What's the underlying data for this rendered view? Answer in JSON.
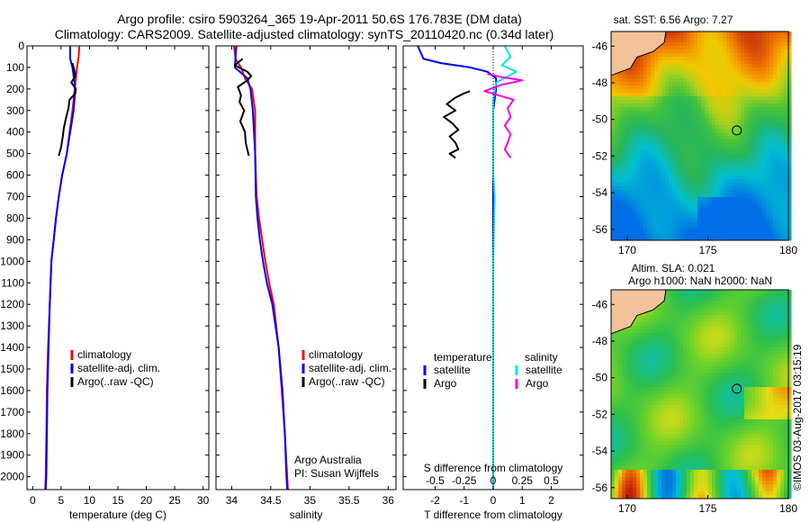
{
  "header": {
    "line1": "Argo profile: csiro 5903264_365 19-Apr-2011 50.6S 176.783E (DM data)",
    "line2": "Climatology: CARS2009. Satellite-adjusted climatology: synTS_20110420.nc (0.34d later)"
  },
  "colors": {
    "climatology": "#ff0000",
    "satellite": "#0000ff",
    "argo": "#000000",
    "sat_salinity": "#00e5ee",
    "argo_salinity": "#ee00ee",
    "land": "#f2c39a"
  },
  "chart_data": [
    {
      "type": "line",
      "id": "temperature",
      "xlabel": "temperature (deg C)",
      "xlim": [
        -1,
        31
      ],
      "ylim": [
        2060,
        0
      ],
      "xticks": [
        0,
        5,
        10,
        15,
        20,
        25,
        30
      ],
      "yticks": [
        0,
        100,
        200,
        300,
        400,
        500,
        600,
        700,
        800,
        900,
        1000,
        1100,
        1200,
        1300,
        1400,
        1500,
        1600,
        1700,
        1800,
        1900,
        2000
      ],
      "legend": [
        "climatology",
        "satellite-adj. clim.",
        "Argo(..raw -QC)"
      ],
      "series": [
        {
          "name": "climatology",
          "color": "#ff0000",
          "x": [
            8.2,
            8.1,
            7.8,
            7.4,
            7.0,
            6.5,
            6.0,
            5.2,
            4.6,
            4.1,
            3.7,
            3.3,
            3.0,
            2.7,
            2.5,
            2.4,
            2.3,
            2.2
          ],
          "y": [
            0,
            50,
            100,
            200,
            300,
            400,
            500,
            600,
            700,
            800,
            900,
            1000,
            1200,
            1400,
            1600,
            1800,
            2000,
            2060
          ]
        },
        {
          "name": "satellite-adj. clim.",
          "color": "#0000ff",
          "x": [
            6.6,
            6.6,
            7.0,
            7.5,
            7.2,
            6.6,
            6.0,
            5.2,
            4.6,
            4.1,
            3.7,
            3.3,
            3.0,
            2.8,
            2.6,
            2.5,
            2.4,
            2.3
          ],
          "y": [
            0,
            60,
            100,
            200,
            300,
            400,
            500,
            600,
            700,
            800,
            900,
            1000,
            1200,
            1400,
            1600,
            1800,
            2000,
            2060
          ]
        },
        {
          "name": "Argo(..raw -QC)",
          "color": "#000000",
          "x": [
            7.0,
            7.3,
            7.5,
            6.8,
            7.6,
            7.5,
            6.5,
            6.3,
            5.9,
            5.5,
            5.3,
            5.0,
            4.6
          ],
          "y": [
            80,
            110,
            140,
            170,
            200,
            220,
            250,
            290,
            330,
            380,
            420,
            470,
            510
          ]
        }
      ]
    },
    {
      "type": "line",
      "id": "salinity",
      "xlabel": "salinity",
      "xlim": [
        33.8,
        36.1
      ],
      "ylim": [
        2060,
        0
      ],
      "xticks": [
        34,
        34.5,
        35,
        35.5,
        36
      ],
      "legend": [
        "climatology",
        "satellite-adj. clim.",
        "Argo(..raw -QC)"
      ],
      "annotation": [
        "Argo Australia",
        "PI: Susan Wijffels"
      ],
      "series": [
        {
          "name": "climatology",
          "color": "#ff0000",
          "x": [
            34.03,
            34.05,
            34.12,
            34.17,
            34.26,
            34.3,
            34.3,
            34.32,
            34.35,
            34.39,
            34.43,
            34.48,
            34.54,
            34.6,
            34.64,
            34.68,
            34.71,
            34.72
          ],
          "y": [
            0,
            60,
            100,
            150,
            200,
            300,
            500,
            700,
            800,
            900,
            1000,
            1100,
            1200,
            1400,
            1600,
            1800,
            2000,
            2060
          ]
        },
        {
          "name": "satellite-adj. clim.",
          "color": "#0000ff",
          "x": [
            34.06,
            34.04,
            34.2,
            34.24,
            34.27,
            34.3,
            34.31,
            34.33,
            34.36,
            34.4,
            34.45,
            34.52,
            34.6,
            34.65,
            34.68,
            34.7,
            34.71
          ],
          "y": [
            0,
            100,
            150,
            200,
            300,
            500,
            700,
            800,
            900,
            1000,
            1100,
            1200,
            1400,
            1600,
            1800,
            2000,
            2060
          ]
        },
        {
          "name": "Argo(..raw -QC)",
          "color": "#000000",
          "x": [
            34.14,
            34.04,
            34.2,
            34.25,
            34.2,
            34.08,
            34.12,
            34.1,
            34.16,
            34.11,
            34.17,
            34.18,
            34.22
          ],
          "y": [
            60,
            90,
            120,
            140,
            160,
            190,
            230,
            260,
            300,
            350,
            400,
            450,
            510
          ]
        }
      ]
    },
    {
      "type": "line",
      "id": "differences",
      "xlabel": "T difference from climatology",
      "xlabel2": "S difference from climatology",
      "xlim": [
        -3.1,
        3.1
      ],
      "ylim": [
        2060,
        0
      ],
      "xticks_T": [
        -2,
        -1,
        0,
        1,
        2
      ],
      "xticks_S": [
        "-0.5",
        "-0.25",
        "0",
        "0.25",
        "0.5"
      ],
      "xticks_S_pos": [
        -2,
        -1,
        0,
        1,
        2
      ],
      "legend_t": [
        "temperature",
        "satellite",
        "Argo"
      ],
      "legend_s": [
        "salinity",
        "satellite",
        "Argo"
      ],
      "series": [
        {
          "name": "satellite",
          "color": "#0000ff",
          "x": [
            -2.6,
            -2.4,
            -1.8,
            -0.8,
            -0.2,
            0.1,
            0.1,
            0.0,
            0.0,
            0.0,
            0.0,
            0.0
          ],
          "y": [
            0,
            60,
            80,
            100,
            120,
            150,
            200,
            300,
            600,
            1000,
            1500,
            2060
          ]
        },
        {
          "name": "Argo",
          "color": "#000000",
          "x": [
            -0.8,
            -1.0,
            -1.3,
            -1.6,
            -1.3,
            -1.7,
            -1.4,
            -1.2,
            -1.5,
            -1.3,
            -1.2,
            -1.5,
            -1.3
          ],
          "y": [
            210,
            220,
            240,
            270,
            300,
            330,
            360,
            390,
            420,
            450,
            480,
            500,
            520
          ]
        },
        {
          "name": "salinity satellite",
          "color": "#00e5ee",
          "x": [
            0.4,
            0.6,
            0.3,
            0.8,
            0.1,
            0.0,
            0.0,
            0.0,
            0.05,
            0.0,
            0.0
          ],
          "y": [
            0,
            50,
            90,
            120,
            170,
            250,
            400,
            600,
            700,
            1000,
            2060
          ]
        },
        {
          "name": "salinity Argo",
          "color": "#ee00ee",
          "x": [
            -0.2,
            0.3,
            1.0,
            0.3,
            -0.3,
            0.7,
            0.5,
            0.6,
            0.4,
            0.6,
            0.5,
            0.4,
            0.6
          ],
          "y": [
            130,
            145,
            160,
            180,
            210,
            250,
            290,
            330,
            370,
            410,
            450,
            480,
            520
          ]
        }
      ]
    },
    {
      "type": "heatmap",
      "id": "sst_map",
      "title": "sat. SST: 6.56 Argo: 7.27",
      "xlim": [
        169,
        180
      ],
      "ylim": [
        -56.6,
        -45.2
      ],
      "xticks": [
        170,
        175,
        180
      ],
      "yticks": [
        -46,
        -48,
        -50,
        -52,
        -54,
        -56
      ],
      "marker": {
        "lon": 176.8,
        "lat": -50.6
      }
    },
    {
      "type": "heatmap",
      "id": "sla_map",
      "title": "Altim. SLA: 0.021",
      "subtitle": "Argo h1000: NaN h2000: NaN",
      "xlim": [
        169,
        180
      ],
      "ylim": [
        -56.6,
        -45.2
      ],
      "xticks": [
        170,
        175,
        180
      ],
      "yticks": [
        -46,
        -48,
        -50,
        -52,
        -54,
        -56
      ],
      "marker": {
        "lon": 176.8,
        "lat": -50.6
      }
    }
  ],
  "credit": "©IMOS 03-Aug-2017 03:15:19"
}
